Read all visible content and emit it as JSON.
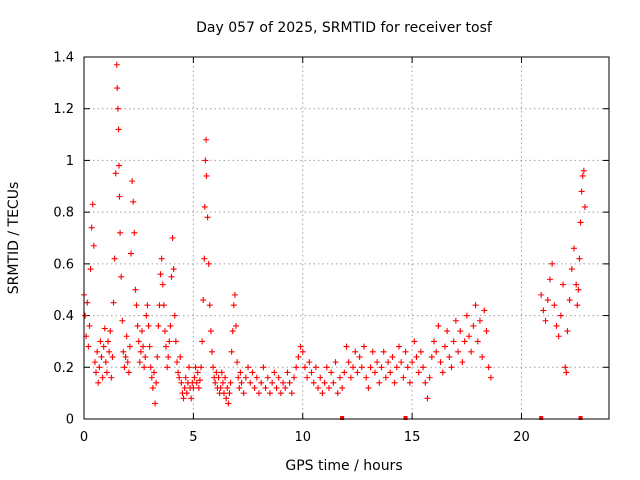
{
  "chart_data": {
    "type": "scatter",
    "title": "Day 057 of 2025, SRMTID for receiver tosf",
    "xlabel": "GPS time / hours",
    "ylabel": "SRMTID / TECUs",
    "xlim": [
      0,
      24
    ],
    "ylim": [
      0,
      1.4
    ],
    "xticks": [
      0,
      5,
      10,
      15,
      20
    ],
    "xtick_labels": [
      "0",
      "5",
      "10",
      "15",
      "20"
    ],
    "yticks": [
      0,
      0.2,
      0.4,
      0.6,
      0.8,
      1.0,
      1.2,
      1.4
    ],
    "ytick_labels": [
      "0",
      "0.2",
      "0.4",
      "0.6",
      "0.8",
      "1",
      "1.2",
      "1.4"
    ],
    "grid": true,
    "marker": "+",
    "color": "#ff0000",
    "series": [
      {
        "name": "SRMTID",
        "points": [
          [
            0.0,
            0.48
          ],
          [
            0.05,
            0.4
          ],
          [
            0.1,
            0.32
          ],
          [
            0.15,
            0.45
          ],
          [
            0.2,
            0.28
          ],
          [
            0.25,
            0.36
          ],
          [
            0.3,
            0.58
          ],
          [
            0.35,
            0.74
          ],
          [
            0.4,
            0.83
          ],
          [
            0.45,
            0.67
          ],
          [
            0.5,
            0.22
          ],
          [
            0.55,
            0.18
          ],
          [
            0.6,
            0.26
          ],
          [
            0.65,
            0.14
          ],
          [
            0.7,
            0.2
          ],
          [
            0.75,
            0.3
          ],
          [
            0.8,
            0.24
          ],
          [
            0.85,
            0.16
          ],
          [
            0.9,
            0.28
          ],
          [
            0.95,
            0.35
          ],
          [
            1.0,
            0.22
          ],
          [
            1.05,
            0.18
          ],
          [
            1.1,
            0.3
          ],
          [
            1.15,
            0.26
          ],
          [
            1.2,
            0.34
          ],
          [
            1.25,
            0.16
          ],
          [
            1.3,
            0.24
          ],
          [
            1.35,
            0.45
          ],
          [
            1.4,
            0.62
          ],
          [
            1.45,
            0.95
          ],
          [
            1.5,
            1.37
          ],
          [
            1.52,
            1.28
          ],
          [
            1.55,
            1.2
          ],
          [
            1.58,
            1.12
          ],
          [
            1.6,
            0.98
          ],
          [
            1.62,
            0.86
          ],
          [
            1.65,
            0.72
          ],
          [
            1.7,
            0.55
          ],
          [
            1.75,
            0.38
          ],
          [
            1.8,
            0.26
          ],
          [
            1.85,
            0.2
          ],
          [
            1.9,
            0.24
          ],
          [
            1.95,
            0.32
          ],
          [
            2.0,
            0.22
          ],
          [
            2.05,
            0.18
          ],
          [
            2.1,
            0.28
          ],
          [
            2.15,
            0.64
          ],
          [
            2.2,
            0.92
          ],
          [
            2.25,
            0.84
          ],
          [
            2.3,
            0.72
          ],
          [
            2.35,
            0.5
          ],
          [
            2.4,
            0.44
          ],
          [
            2.45,
            0.36
          ],
          [
            2.5,
            0.3
          ],
          [
            2.55,
            0.22
          ],
          [
            2.6,
            0.26
          ],
          [
            2.65,
            0.34
          ],
          [
            2.7,
            0.28
          ],
          [
            2.75,
            0.2
          ],
          [
            2.8,
            0.24
          ],
          [
            2.85,
            0.4
          ],
          [
            2.9,
            0.44
          ],
          [
            2.95,
            0.36
          ],
          [
            3.0,
            0.28
          ],
          [
            3.05,
            0.2
          ],
          [
            3.1,
            0.16
          ],
          [
            3.15,
            0.12
          ],
          [
            3.2,
            0.18
          ],
          [
            3.25,
            0.06
          ],
          [
            3.3,
            0.14
          ],
          [
            3.35,
            0.24
          ],
          [
            3.4,
            0.36
          ],
          [
            3.45,
            0.44
          ],
          [
            3.5,
            0.56
          ],
          [
            3.55,
            0.62
          ],
          [
            3.6,
            0.52
          ],
          [
            3.65,
            0.44
          ],
          [
            3.7,
            0.34
          ],
          [
            3.75,
            0.28
          ],
          [
            3.8,
            0.2
          ],
          [
            3.85,
            0.24
          ],
          [
            3.9,
            0.3
          ],
          [
            3.95,
            0.36
          ],
          [
            4.0,
            0.55
          ],
          [
            4.05,
            0.7
          ],
          [
            4.1,
            0.58
          ],
          [
            4.15,
            0.4
          ],
          [
            4.2,
            0.3
          ],
          [
            4.25,
            0.22
          ],
          [
            4.3,
            0.18
          ],
          [
            4.35,
            0.16
          ],
          [
            4.4,
            0.24
          ],
          [
            4.45,
            0.14
          ],
          [
            4.5,
            0.1
          ],
          [
            4.55,
            0.08
          ],
          [
            4.6,
            0.12
          ],
          [
            4.65,
            0.16
          ],
          [
            4.7,
            0.1
          ],
          [
            4.75,
            0.14
          ],
          [
            4.8,
            0.2
          ],
          [
            4.85,
            0.12
          ],
          [
            4.9,
            0.08
          ],
          [
            4.95,
            0.14
          ],
          [
            5.0,
            0.12
          ],
          [
            5.05,
            0.16
          ],
          [
            5.1,
            0.2
          ],
          [
            5.15,
            0.14
          ],
          [
            5.2,
            0.18
          ],
          [
            5.25,
            0.12
          ],
          [
            5.3,
            0.15
          ],
          [
            5.35,
            0.2
          ],
          [
            5.4,
            0.3
          ],
          [
            5.45,
            0.46
          ],
          [
            5.5,
            0.62
          ],
          [
            5.52,
            0.82
          ],
          [
            5.55,
            1.0
          ],
          [
            5.58,
            1.08
          ],
          [
            5.6,
            0.94
          ],
          [
            5.65,
            0.78
          ],
          [
            5.7,
            0.6
          ],
          [
            5.75,
            0.44
          ],
          [
            5.8,
            0.34
          ],
          [
            5.85,
            0.26
          ],
          [
            5.9,
            0.2
          ],
          [
            5.95,
            0.16
          ],
          [
            6.0,
            0.14
          ],
          [
            6.05,
            0.18
          ],
          [
            6.1,
            0.12
          ],
          [
            6.15,
            0.16
          ],
          [
            6.2,
            0.1
          ],
          [
            6.25,
            0.12
          ],
          [
            6.3,
            0.18
          ],
          [
            6.35,
            0.14
          ],
          [
            6.4,
            0.1
          ],
          [
            6.45,
            0.16
          ],
          [
            6.5,
            0.08
          ],
          [
            6.55,
            0.12
          ],
          [
            6.6,
            0.06
          ],
          [
            6.65,
            0.1
          ],
          [
            6.7,
            0.14
          ],
          [
            6.75,
            0.26
          ],
          [
            6.8,
            0.34
          ],
          [
            6.85,
            0.44
          ],
          [
            6.9,
            0.48
          ],
          [
            6.95,
            0.36
          ],
          [
            7.0,
            0.22
          ],
          [
            7.05,
            0.16
          ],
          [
            7.1,
            0.12
          ],
          [
            7.15,
            0.18
          ],
          [
            7.2,
            0.14
          ],
          [
            7.3,
            0.1
          ],
          [
            7.4,
            0.16
          ],
          [
            7.5,
            0.2
          ],
          [
            7.6,
            0.14
          ],
          [
            7.7,
            0.18
          ],
          [
            7.8,
            0.12
          ],
          [
            7.9,
            0.16
          ],
          [
            8.0,
            0.1
          ],
          [
            8.1,
            0.14
          ],
          [
            8.2,
            0.2
          ],
          [
            8.3,
            0.12
          ],
          [
            8.4,
            0.16
          ],
          [
            8.5,
            0.1
          ],
          [
            8.6,
            0.14
          ],
          [
            8.7,
            0.18
          ],
          [
            8.8,
            0.12
          ],
          [
            8.9,
            0.16
          ],
          [
            9.0,
            0.1
          ],
          [
            9.1,
            0.14
          ],
          [
            9.2,
            0.12
          ],
          [
            9.3,
            0.18
          ],
          [
            9.4,
            0.14
          ],
          [
            9.5,
            0.1
          ],
          [
            9.6,
            0.16
          ],
          [
            9.7,
            0.2
          ],
          [
            9.8,
            0.24
          ],
          [
            9.9,
            0.28
          ],
          [
            10.0,
            0.26
          ],
          [
            10.1,
            0.2
          ],
          [
            10.2,
            0.16
          ],
          [
            10.3,
            0.22
          ],
          [
            10.4,
            0.18
          ],
          [
            10.5,
            0.14
          ],
          [
            10.6,
            0.2
          ],
          [
            10.7,
            0.12
          ],
          [
            10.8,
            0.16
          ],
          [
            10.9,
            0.1
          ],
          [
            11.0,
            0.14
          ],
          [
            11.1,
            0.2
          ],
          [
            11.2,
            0.12
          ],
          [
            11.3,
            0.18
          ],
          [
            11.4,
            0.14
          ],
          [
            11.5,
            0.22
          ],
          [
            11.6,
            0.1
          ],
          [
            11.7,
            0.16
          ],
          [
            11.8,
            0.12
          ],
          [
            11.9,
            0.18
          ],
          [
            12.0,
            0.28
          ],
          [
            12.1,
            0.22
          ],
          [
            12.2,
            0.16
          ],
          [
            12.3,
            0.2
          ],
          [
            12.4,
            0.26
          ],
          [
            12.5,
            0.18
          ],
          [
            12.6,
            0.24
          ],
          [
            12.7,
            0.2
          ],
          [
            12.8,
            0.28
          ],
          [
            12.9,
            0.16
          ],
          [
            13.0,
            0.12
          ],
          [
            13.1,
            0.2
          ],
          [
            13.2,
            0.26
          ],
          [
            13.3,
            0.18
          ],
          [
            13.4,
            0.22
          ],
          [
            13.5,
            0.14
          ],
          [
            13.6,
            0.2
          ],
          [
            13.7,
            0.26
          ],
          [
            13.8,
            0.16
          ],
          [
            13.9,
            0.22
          ],
          [
            14.0,
            0.18
          ],
          [
            14.1,
            0.24
          ],
          [
            14.2,
            0.14
          ],
          [
            14.3,
            0.2
          ],
          [
            14.4,
            0.28
          ],
          [
            14.5,
            0.22
          ],
          [
            14.6,
            0.16
          ],
          [
            14.7,
            0.26
          ],
          [
            14.8,
            0.2
          ],
          [
            14.9,
            0.14
          ],
          [
            15.0,
            0.22
          ],
          [
            15.1,
            0.3
          ],
          [
            15.2,
            0.24
          ],
          [
            15.3,
            0.18
          ],
          [
            15.4,
            0.26
          ],
          [
            15.5,
            0.2
          ],
          [
            15.6,
            0.14
          ],
          [
            15.7,
            0.08
          ],
          [
            15.8,
            0.16
          ],
          [
            15.9,
            0.24
          ],
          [
            16.0,
            0.3
          ],
          [
            16.1,
            0.26
          ],
          [
            16.2,
            0.36
          ],
          [
            16.3,
            0.22
          ],
          [
            16.4,
            0.18
          ],
          [
            16.5,
            0.28
          ],
          [
            16.6,
            0.34
          ],
          [
            16.7,
            0.24
          ],
          [
            16.8,
            0.2
          ],
          [
            16.9,
            0.3
          ],
          [
            17.0,
            0.38
          ],
          [
            17.1,
            0.26
          ],
          [
            17.2,
            0.34
          ],
          [
            17.3,
            0.22
          ],
          [
            17.4,
            0.3
          ],
          [
            17.5,
            0.4
          ],
          [
            17.6,
            0.32
          ],
          [
            17.7,
            0.26
          ],
          [
            17.8,
            0.36
          ],
          [
            17.9,
            0.44
          ],
          [
            18.0,
            0.3
          ],
          [
            18.1,
            0.38
          ],
          [
            18.2,
            0.24
          ],
          [
            18.3,
            0.42
          ],
          [
            18.4,
            0.34
          ],
          [
            18.5,
            0.2
          ],
          [
            18.6,
            0.16
          ],
          [
            20.9,
            0.48
          ],
          [
            21.0,
            0.42
          ],
          [
            21.1,
            0.38
          ],
          [
            21.2,
            0.46
          ],
          [
            21.3,
            0.54
          ],
          [
            21.4,
            0.6
          ],
          [
            21.5,
            0.44
          ],
          [
            21.6,
            0.36
          ],
          [
            21.7,
            0.32
          ],
          [
            21.8,
            0.4
          ],
          [
            21.9,
            0.52
          ],
          [
            22.0,
            0.2
          ],
          [
            22.05,
            0.18
          ],
          [
            22.1,
            0.34
          ],
          [
            22.2,
            0.46
          ],
          [
            22.3,
            0.58
          ],
          [
            22.4,
            0.66
          ],
          [
            22.5,
            0.52
          ],
          [
            22.55,
            0.44
          ],
          [
            22.6,
            0.5
          ],
          [
            22.65,
            0.62
          ],
          [
            22.7,
            0.76
          ],
          [
            22.75,
            0.88
          ],
          [
            22.8,
            0.94
          ],
          [
            22.85,
            0.96
          ],
          [
            22.9,
            0.82
          ]
        ]
      }
    ],
    "zero_markers_x": [
      11.8,
      14.7,
      20.9,
      22.7
    ]
  }
}
